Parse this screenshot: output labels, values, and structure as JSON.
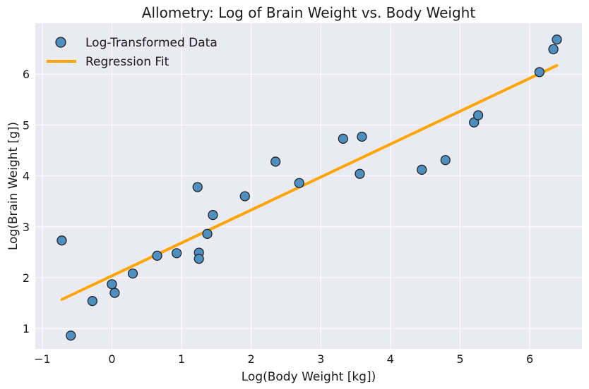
{
  "chart_data": {
    "type": "scatter",
    "title": "Allometry: Log of Brain Weight vs. Body Weight",
    "xlabel": "Log(Body Weight [kg])",
    "ylabel": "Log(Brain Weight [g])",
    "xlim": [
      -1.1,
      6.75
    ],
    "ylim": [
      0.6,
      7.0
    ],
    "x_ticks": [
      -1,
      0,
      1,
      2,
      3,
      4,
      5,
      6
    ],
    "x_tick_labels": [
      "−1",
      "0",
      "1",
      "2",
      "3",
      "4",
      "5",
      "6"
    ],
    "y_ticks": [
      1,
      2,
      3,
      4,
      5,
      6
    ],
    "y_tick_labels": [
      "1",
      "2",
      "3",
      "4",
      "5",
      "6"
    ],
    "grid": true,
    "legend_position": "top-left",
    "series": [
      {
        "name": "Log-Transformed Data",
        "kind": "scatter",
        "color": "#4f8fc0",
        "edge_color": "#1a1a1a",
        "points": [
          {
            "x": -0.72,
            "y": 2.73
          },
          {
            "x": -0.59,
            "y": 0.86
          },
          {
            "x": -0.28,
            "y": 1.54
          },
          {
            "x": 0.0,
            "y": 1.87
          },
          {
            "x": 0.04,
            "y": 1.7
          },
          {
            "x": 0.3,
            "y": 2.08
          },
          {
            "x": 0.65,
            "y": 2.43
          },
          {
            "x": 0.93,
            "y": 2.48
          },
          {
            "x": 1.23,
            "y": 3.78
          },
          {
            "x": 1.25,
            "y": 2.49
          },
          {
            "x": 1.25,
            "y": 2.37
          },
          {
            "x": 1.37,
            "y": 2.86
          },
          {
            "x": 1.45,
            "y": 3.23
          },
          {
            "x": 1.91,
            "y": 3.6
          },
          {
            "x": 2.35,
            "y": 4.28
          },
          {
            "x": 2.69,
            "y": 3.86
          },
          {
            "x": 3.32,
            "y": 4.73
          },
          {
            "x": 3.56,
            "y": 4.04
          },
          {
            "x": 3.59,
            "y": 4.77
          },
          {
            "x": 4.45,
            "y": 4.12
          },
          {
            "x": 4.79,
            "y": 4.31
          },
          {
            "x": 5.2,
            "y": 5.05
          },
          {
            "x": 5.26,
            "y": 5.19
          },
          {
            "x": 6.14,
            "y": 6.04
          },
          {
            "x": 6.34,
            "y": 6.49
          },
          {
            "x": 6.39,
            "y": 6.68
          }
        ]
      },
      {
        "name": "Regression Fit",
        "kind": "line",
        "color": "#ffa500",
        "points": [
          {
            "x": -0.72,
            "y": 1.57
          },
          {
            "x": 6.39,
            "y": 6.17
          }
        ]
      }
    ]
  }
}
